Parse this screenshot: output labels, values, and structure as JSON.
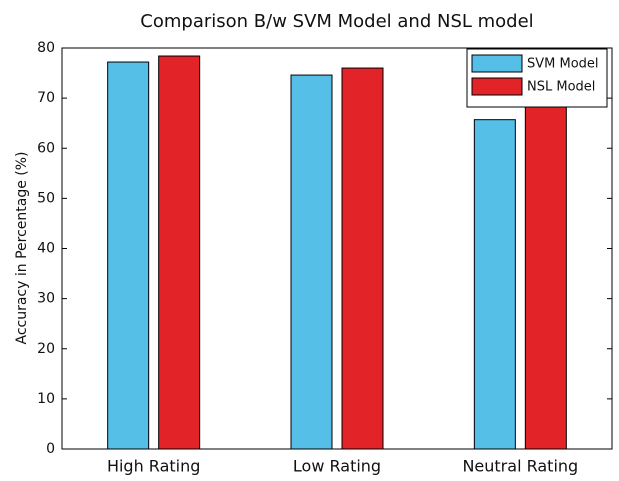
{
  "chart_data": {
    "type": "bar",
    "title": "Comparison B/w SVM Model and NSL model",
    "ylabel": "Accuracy in Percentage (%)",
    "categories": [
      "High Rating",
      "Low Rating",
      "Neutral Rating"
    ],
    "series": [
      {
        "name": "SVM Model",
        "color": "#56bfe8",
        "values": [
          77.2,
          74.6,
          65.7
        ]
      },
      {
        "name": "NSL Model",
        "color": "#e22428",
        "values": [
          78.4,
          76.0,
          69.1
        ]
      }
    ],
    "ylim": [
      0,
      80
    ],
    "yticks": [
      0,
      10,
      20,
      30,
      40,
      50,
      60,
      70,
      80
    ],
    "legend": "upper right",
    "grid": false
  }
}
